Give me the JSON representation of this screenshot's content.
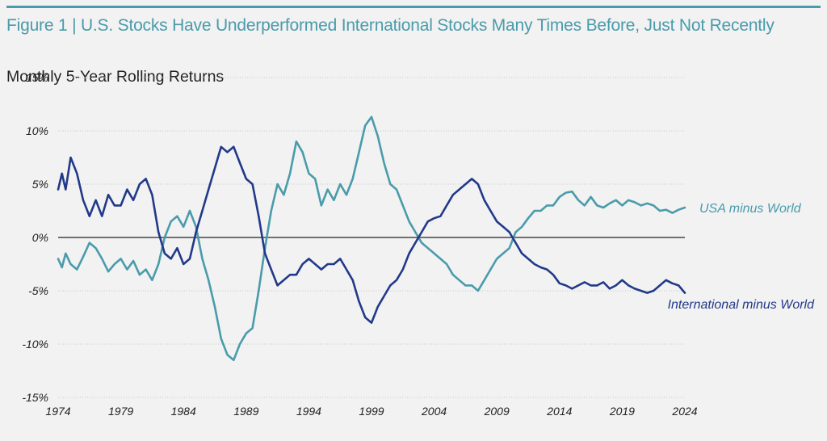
{
  "figure": {
    "title": "Figure 1 | U.S. Stocks Have Underperformed International Stocks Many Times Before, Just Not Recently",
    "subtitle": "Monthly 5-Year Rolling Returns"
  },
  "colors": {
    "background": "#f1f2f1",
    "title": "#4a9bab",
    "usa_series": "#4a9bab",
    "international_series": "#22398a",
    "zero_line": "#222222",
    "grid": "#c8c8c8"
  },
  "chart_data": {
    "type": "line",
    "title": "Monthly 5-Year Rolling Returns",
    "xlabel": "",
    "ylabel": "",
    "x_range": [
      1974,
      2024
    ],
    "x_ticks": [
      {
        "value": 1974,
        "label": "1974"
      },
      {
        "value": 1979,
        "label": "1979"
      },
      {
        "value": 1984,
        "label": "1984"
      },
      {
        "value": 1989,
        "label": "1989"
      },
      {
        "value": 1994,
        "label": "1994"
      },
      {
        "value": 1999,
        "label": "1999"
      },
      {
        "value": 2004,
        "label": "2004"
      },
      {
        "value": 2009,
        "label": "2009"
      },
      {
        "value": 2014,
        "label": "2014"
      },
      {
        "value": 2019,
        "label": "2019"
      },
      {
        "value": 2024,
        "label": "2024"
      }
    ],
    "y_range": [
      -15,
      15
    ],
    "y_ticks": [
      {
        "value": 15,
        "label": "15%"
      },
      {
        "value": 10,
        "label": "10%"
      },
      {
        "value": 5,
        "label": "5%"
      },
      {
        "value": 0,
        "label": "0%"
      },
      {
        "value": -5,
        "label": "-5%"
      },
      {
        "value": -10,
        "label": "-10%"
      },
      {
        "value": -15,
        "label": "-15%"
      }
    ],
    "grid": "horizontal dotted",
    "legend": "inline labels at right end of series",
    "series": [
      {
        "name": "USA minus World",
        "key": "usa",
        "points": [
          [
            1974.0,
            -2.0
          ],
          [
            1974.3,
            -2.8
          ],
          [
            1974.6,
            -1.5
          ],
          [
            1975.0,
            -2.5
          ],
          [
            1975.5,
            -3.0
          ],
          [
            1976.0,
            -1.8
          ],
          [
            1976.5,
            -0.5
          ],
          [
            1977.0,
            -1.0
          ],
          [
            1977.5,
            -2.0
          ],
          [
            1978.0,
            -3.2
          ],
          [
            1978.5,
            -2.5
          ],
          [
            1979.0,
            -2.0
          ],
          [
            1979.5,
            -3.0
          ],
          [
            1980.0,
            -2.2
          ],
          [
            1980.5,
            -3.5
          ],
          [
            1981.0,
            -3.0
          ],
          [
            1981.5,
            -4.0
          ],
          [
            1982.0,
            -2.5
          ],
          [
            1982.5,
            0.0
          ],
          [
            1983.0,
            1.5
          ],
          [
            1983.5,
            2.0
          ],
          [
            1984.0,
            1.0
          ],
          [
            1984.5,
            2.5
          ],
          [
            1985.0,
            1.0
          ],
          [
            1985.5,
            -2.0
          ],
          [
            1986.0,
            -4.0
          ],
          [
            1986.5,
            -6.5
          ],
          [
            1987.0,
            -9.5
          ],
          [
            1987.5,
            -11.0
          ],
          [
            1988.0,
            -11.5
          ],
          [
            1988.5,
            -10.0
          ],
          [
            1989.0,
            -9.0
          ],
          [
            1989.5,
            -8.5
          ],
          [
            1990.0,
            -5.0
          ],
          [
            1990.5,
            -1.0
          ],
          [
            1991.0,
            2.5
          ],
          [
            1991.5,
            5.0
          ],
          [
            1992.0,
            4.0
          ],
          [
            1992.5,
            6.0
          ],
          [
            1993.0,
            9.0
          ],
          [
            1993.5,
            8.0
          ],
          [
            1994.0,
            6.0
          ],
          [
            1994.5,
            5.5
          ],
          [
            1995.0,
            3.0
          ],
          [
            1995.5,
            4.5
          ],
          [
            1996.0,
            3.5
          ],
          [
            1996.5,
            5.0
          ],
          [
            1997.0,
            4.0
          ],
          [
            1997.5,
            5.5
          ],
          [
            1998.0,
            8.0
          ],
          [
            1998.5,
            10.5
          ],
          [
            1999.0,
            11.3
          ],
          [
            1999.5,
            9.5
          ],
          [
            2000.0,
            7.0
          ],
          [
            2000.5,
            5.0
          ],
          [
            2001.0,
            4.5
          ],
          [
            2001.5,
            3.0
          ],
          [
            2002.0,
            1.5
          ],
          [
            2002.5,
            0.5
          ],
          [
            2003.0,
            -0.5
          ],
          [
            2003.5,
            -1.0
          ],
          [
            2004.0,
            -1.5
          ],
          [
            2004.5,
            -2.0
          ],
          [
            2005.0,
            -2.5
          ],
          [
            2005.5,
            -3.5
          ],
          [
            2006.0,
            -4.0
          ],
          [
            2006.5,
            -4.5
          ],
          [
            2007.0,
            -4.5
          ],
          [
            2007.5,
            -5.0
          ],
          [
            2008.0,
            -4.0
          ],
          [
            2008.5,
            -3.0
          ],
          [
            2009.0,
            -2.0
          ],
          [
            2009.5,
            -1.5
          ],
          [
            2010.0,
            -1.0
          ],
          [
            2010.5,
            0.5
          ],
          [
            2011.0,
            1.0
          ],
          [
            2011.5,
            1.8
          ],
          [
            2012.0,
            2.5
          ],
          [
            2012.5,
            2.5
          ],
          [
            2013.0,
            3.0
          ],
          [
            2013.5,
            3.0
          ],
          [
            2014.0,
            3.8
          ],
          [
            2014.5,
            4.2
          ],
          [
            2015.0,
            4.3
          ],
          [
            2015.5,
            3.5
          ],
          [
            2016.0,
            3.0
          ],
          [
            2016.5,
            3.8
          ],
          [
            2017.0,
            3.0
          ],
          [
            2017.5,
            2.8
          ],
          [
            2018.0,
            3.2
          ],
          [
            2018.5,
            3.5
          ],
          [
            2019.0,
            3.0
          ],
          [
            2019.5,
            3.5
          ],
          [
            2020.0,
            3.3
          ],
          [
            2020.5,
            3.0
          ],
          [
            2021.0,
            3.2
          ],
          [
            2021.5,
            3.0
          ],
          [
            2022.0,
            2.5
          ],
          [
            2022.5,
            2.6
          ],
          [
            2023.0,
            2.3
          ],
          [
            2023.5,
            2.6
          ],
          [
            2024.0,
            2.8
          ]
        ]
      },
      {
        "name": "International minus World",
        "key": "international",
        "points": [
          [
            1974.0,
            4.5
          ],
          [
            1974.3,
            6.0
          ],
          [
            1974.6,
            4.5
          ],
          [
            1975.0,
            7.5
          ],
          [
            1975.5,
            6.0
          ],
          [
            1976.0,
            3.5
          ],
          [
            1976.5,
            2.0
          ],
          [
            1977.0,
            3.5
          ],
          [
            1977.5,
            2.0
          ],
          [
            1978.0,
            4.0
          ],
          [
            1978.5,
            3.0
          ],
          [
            1979.0,
            3.0
          ],
          [
            1979.5,
            4.5
          ],
          [
            1980.0,
            3.5
          ],
          [
            1980.5,
            5.0
          ],
          [
            1981.0,
            5.5
          ],
          [
            1981.5,
            4.0
          ],
          [
            1982.0,
            0.5
          ],
          [
            1982.5,
            -1.5
          ],
          [
            1983.0,
            -2.0
          ],
          [
            1983.5,
            -1.0
          ],
          [
            1984.0,
            -2.5
          ],
          [
            1984.5,
            -2.0
          ],
          [
            1985.0,
            0.5
          ],
          [
            1985.5,
            2.5
          ],
          [
            1986.0,
            4.5
          ],
          [
            1986.5,
            6.5
          ],
          [
            1987.0,
            8.5
          ],
          [
            1987.5,
            8.0
          ],
          [
            1988.0,
            8.5
          ],
          [
            1988.5,
            7.0
          ],
          [
            1989.0,
            5.5
          ],
          [
            1989.5,
            5.0
          ],
          [
            1990.0,
            2.0
          ],
          [
            1990.5,
            -1.5
          ],
          [
            1991.0,
            -3.0
          ],
          [
            1991.5,
            -4.5
          ],
          [
            1992.0,
            -4.0
          ],
          [
            1992.5,
            -3.5
          ],
          [
            1993.0,
            -3.5
          ],
          [
            1993.5,
            -2.5
          ],
          [
            1994.0,
            -2.0
          ],
          [
            1994.5,
            -2.5
          ],
          [
            1995.0,
            -3.0
          ],
          [
            1995.5,
            -2.5
          ],
          [
            1996.0,
            -2.5
          ],
          [
            1996.5,
            -2.0
          ],
          [
            1997.0,
            -3.0
          ],
          [
            1997.5,
            -4.0
          ],
          [
            1998.0,
            -6.0
          ],
          [
            1998.5,
            -7.5
          ],
          [
            1999.0,
            -8.0
          ],
          [
            1999.5,
            -6.5
          ],
          [
            2000.0,
            -5.5
          ],
          [
            2000.5,
            -4.5
          ],
          [
            2001.0,
            -4.0
          ],
          [
            2001.5,
            -3.0
          ],
          [
            2002.0,
            -1.5
          ],
          [
            2002.5,
            -0.5
          ],
          [
            2003.0,
            0.5
          ],
          [
            2003.5,
            1.5
          ],
          [
            2004.0,
            1.8
          ],
          [
            2004.5,
            2.0
          ],
          [
            2005.0,
            3.0
          ],
          [
            2005.5,
            4.0
          ],
          [
            2006.0,
            4.5
          ],
          [
            2006.5,
            5.0
          ],
          [
            2007.0,
            5.5
          ],
          [
            2007.5,
            5.0
          ],
          [
            2008.0,
            3.5
          ],
          [
            2008.5,
            2.5
          ],
          [
            2009.0,
            1.5
          ],
          [
            2009.5,
            1.0
          ],
          [
            2010.0,
            0.5
          ],
          [
            2010.5,
            -0.5
          ],
          [
            2011.0,
            -1.5
          ],
          [
            2011.5,
            -2.0
          ],
          [
            2012.0,
            -2.5
          ],
          [
            2012.5,
            -2.8
          ],
          [
            2013.0,
            -3.0
          ],
          [
            2013.5,
            -3.5
          ],
          [
            2014.0,
            -4.3
          ],
          [
            2014.5,
            -4.5
          ],
          [
            2015.0,
            -4.8
          ],
          [
            2015.5,
            -4.5
          ],
          [
            2016.0,
            -4.2
          ],
          [
            2016.5,
            -4.5
          ],
          [
            2017.0,
            -4.5
          ],
          [
            2017.5,
            -4.2
          ],
          [
            2018.0,
            -4.8
          ],
          [
            2018.5,
            -4.5
          ],
          [
            2019.0,
            -4.0
          ],
          [
            2019.5,
            -4.5
          ],
          [
            2020.0,
            -4.8
          ],
          [
            2020.5,
            -5.0
          ],
          [
            2021.0,
            -5.2
          ],
          [
            2021.5,
            -5.0
          ],
          [
            2022.0,
            -4.5
          ],
          [
            2022.5,
            -4.0
          ],
          [
            2023.0,
            -4.3
          ],
          [
            2023.5,
            -4.5
          ],
          [
            2024.0,
            -5.2
          ]
        ]
      }
    ]
  }
}
